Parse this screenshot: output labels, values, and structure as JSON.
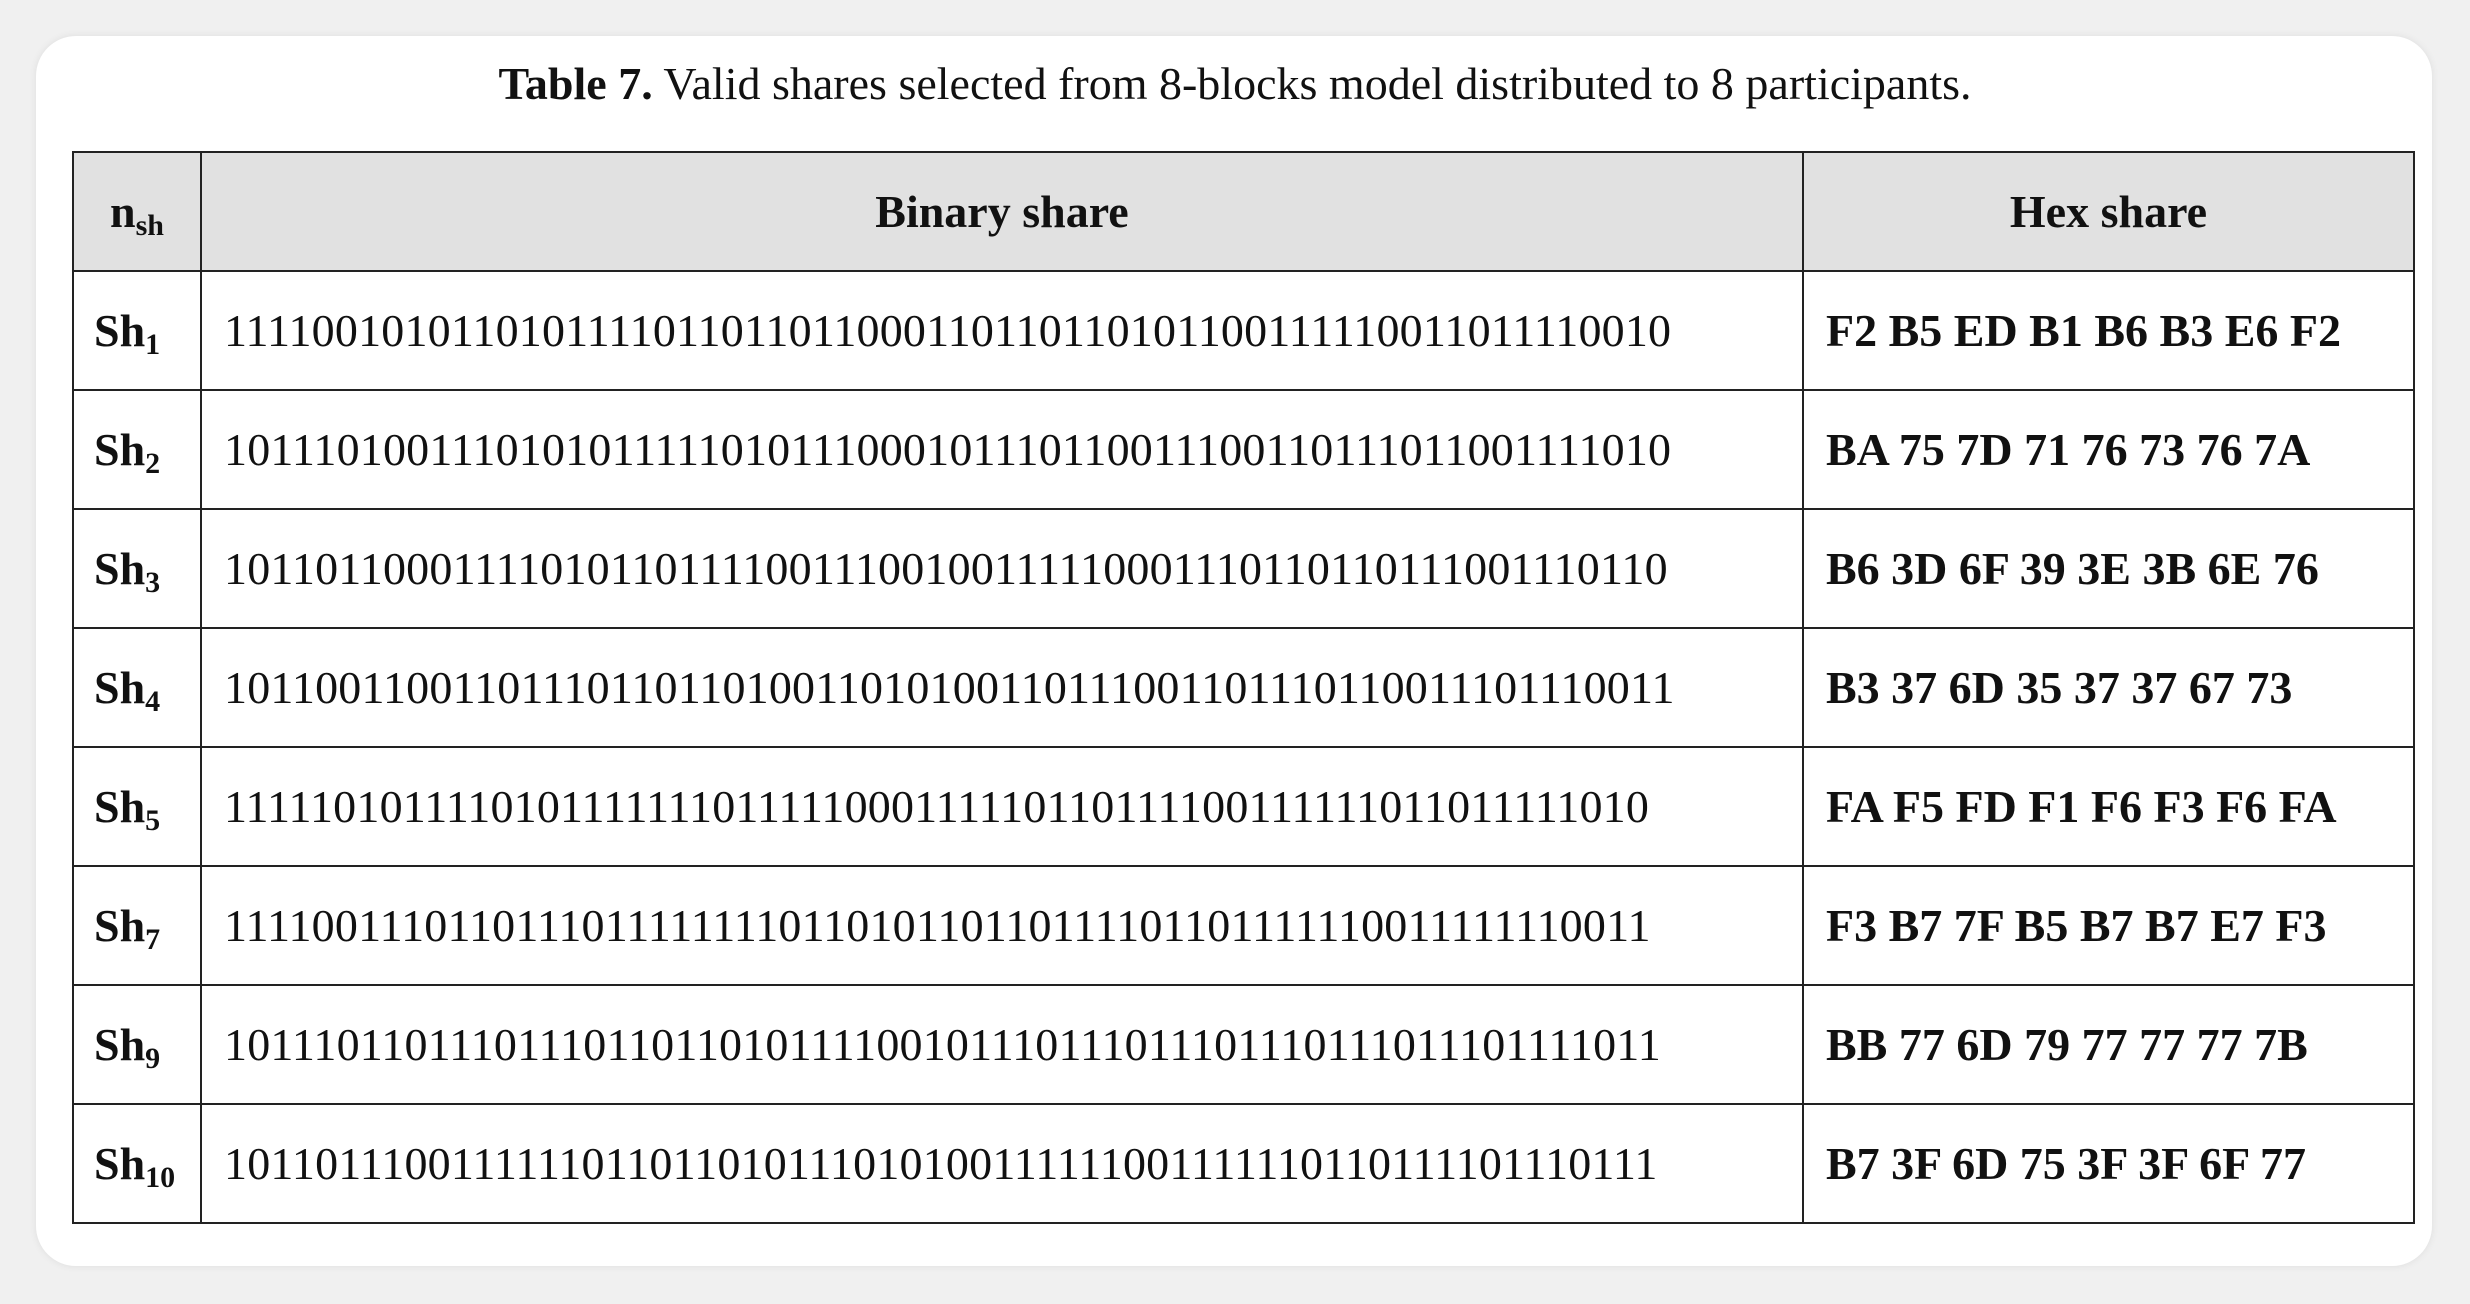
{
  "caption": {
    "label": "Table 7.",
    "text": "Valid shares selected from 8-blocks model distributed to 8 participants."
  },
  "table": {
    "headers": {
      "n_main": "n",
      "n_sub": "sh",
      "binary": "Binary share",
      "hex": "Hex share"
    },
    "rows": [
      {
        "name": "Sh",
        "sub": "1",
        "binary": "1111001010110101111011011011000110110110101100111110011011110010",
        "hex": "F2 B5 ED B1 B6 B3 E6 F2"
      },
      {
        "name": "Sh",
        "sub": "2",
        "binary": "1011101001110101011111010111000101110110011100110111011001111010",
        "hex": "BA 75 7D 71 76 73 76 7A"
      },
      {
        "name": "Sh",
        "sub": "3",
        "binary": "1011011000111101011011110011100100111110001110110110111001110110",
        "hex": "B6 3D 6F 39 3E 3B 6E 76"
      },
      {
        "name": "Sh",
        "sub": "4",
        "binary": "1011001100110111011011010011010100110111001101110110011101110011",
        "hex": "B3 37 6D 35 37 37 67 73"
      },
      {
        "name": "Sh",
        "sub": "5",
        "binary": "1111101011110101111111011111000111110110111100111111011011111010",
        "hex": "FA F5 FD F1 F6 F3 F6 FA"
      },
      {
        "name": "Sh",
        "sub": "7",
        "binary": "1111001110110111011111111011010110110111101101111110011111110011",
        "hex": "F3 B7 7F B5 B7 B7 E7 F3"
      },
      {
        "name": "Sh",
        "sub": "9",
        "binary": "1011101101110111011011010111100101110111011101110111011101111011",
        "hex": "BB 77 6D 79 77 77 77 7B"
      },
      {
        "name": "Sh",
        "sub": "10",
        "binary": "1011011100111111011011010111010100111111001111110110111101110111",
        "hex": "B7 3F 6D 75 3F 3F 6F 77"
      }
    ]
  }
}
